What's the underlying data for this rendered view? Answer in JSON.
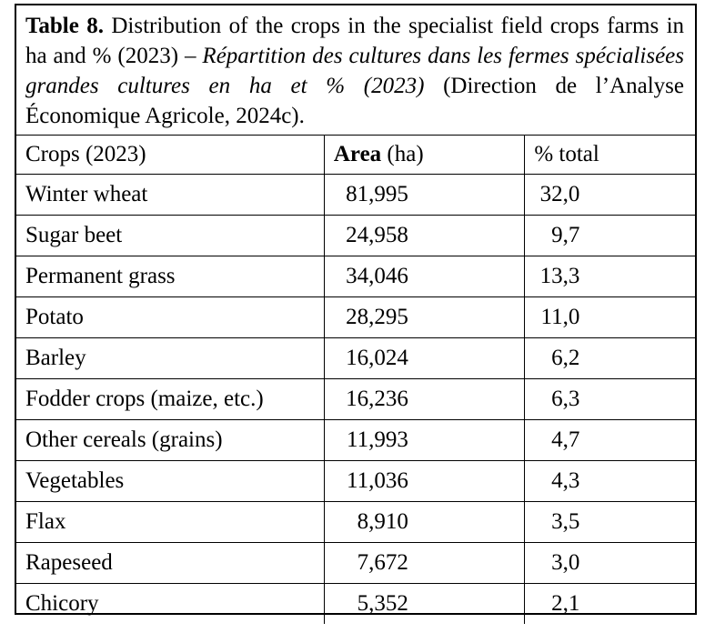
{
  "caption": {
    "label": "Table 8.",
    "english": " Distribution of the crops in the specialist field crops farms in ha and % (2023) – ",
    "french": "Répartition des cultures dans les fermes spécialisées grandes cultures en ha et % (2023)",
    "source": " (Direction de l’Analyse Économique Agricole, 2024c)."
  },
  "table": {
    "headers": {
      "crop": "Crops (2023)",
      "area_bold": "Area",
      "area_unit": " (ha)",
      "pct": "% total"
    },
    "rows": [
      {
        "crop": "Winter wheat",
        "area": "81,995",
        "pct": "32,0"
      },
      {
        "crop": "Sugar beet",
        "area": "24,958",
        "pct": "9,7"
      },
      {
        "crop": "Permanent grass",
        "area": "34,046",
        "pct": "13,3"
      },
      {
        "crop": "Potato",
        "area": "28,295",
        "pct": "11,0"
      },
      {
        "crop": "Barley",
        "area": "16,024",
        "pct": "6,2"
      },
      {
        "crop": "Fodder crops (maize, etc.)",
        "area": "16,236",
        "pct": "6,3"
      },
      {
        "crop": "Other cereals (grains)",
        "area": "11,993",
        "pct": "4,7"
      },
      {
        "crop": "Vegetables",
        "area": "11,036",
        "pct": "4,3"
      },
      {
        "crop": "Flax",
        "area": "8,910",
        "pct": "3,5"
      },
      {
        "crop": "Rapeseed",
        "area": "7,672",
        "pct": "3,0"
      },
      {
        "crop": "Chicory",
        "area": "5,352",
        "pct": "2,1"
      }
    ]
  }
}
